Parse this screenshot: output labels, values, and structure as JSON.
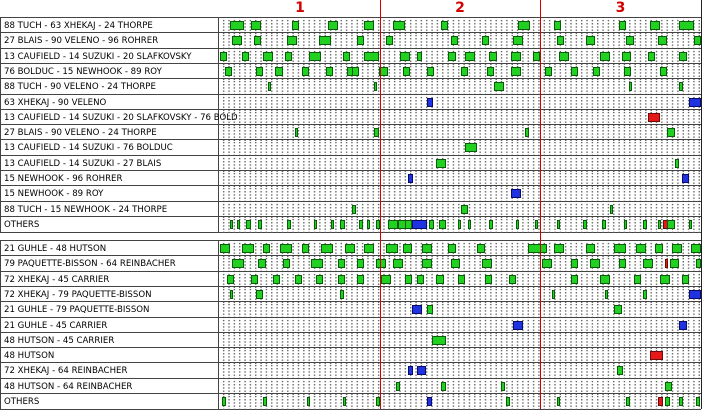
{
  "periods": [
    "1",
    "2",
    "3"
  ],
  "colors": {
    "green": "#22d022",
    "blue": "#1f34e0",
    "red": "#e61919",
    "period_line": "#d40000"
  },
  "top_section": {
    "rows": [
      {
        "label": "88 TUCH - 63 XHEKAJ - 24 THORPE",
        "events": [
          [
            0.02,
            0.05,
            "green"
          ],
          [
            0.065,
            0.085,
            "green"
          ],
          [
            0.15,
            0.165,
            "green"
          ],
          [
            0.225,
            0.245,
            "green"
          ],
          [
            0.3,
            0.32,
            "green"
          ],
          [
            0.36,
            0.385,
            "green"
          ],
          [
            0.46,
            0.475,
            "green"
          ],
          [
            0.62,
            0.645,
            "green"
          ],
          [
            0.695,
            0.71,
            "green"
          ],
          [
            0.83,
            0.845,
            "green"
          ],
          [
            0.895,
            0.915,
            "green"
          ],
          [
            0.955,
            0.985,
            "green"
          ]
        ]
      },
      {
        "label": "27 BLAIS - 90 VELENO - 96 ROHRER",
        "events": [
          [
            0.025,
            0.045,
            "green"
          ],
          [
            0.07,
            0.085,
            "green"
          ],
          [
            0.14,
            0.16,
            "green"
          ],
          [
            0.205,
            0.23,
            "green"
          ],
          [
            0.285,
            0.3,
            "green"
          ],
          [
            0.345,
            0.36,
            "green"
          ],
          [
            0.48,
            0.495,
            "green"
          ],
          [
            0.545,
            0.56,
            "green"
          ],
          [
            0.61,
            0.63,
            "green"
          ],
          [
            0.7,
            0.715,
            "green"
          ],
          [
            0.76,
            0.78,
            "green"
          ],
          [
            0.845,
            0.86,
            "green"
          ],
          [
            0.91,
            0.93,
            "green"
          ],
          [
            0.985,
            1.0,
            "green"
          ]
        ]
      },
      {
        "label": "13 CAUFIELD - 14 SUZUKI - 20 SLAFKOVSKY",
        "events": [
          [
            0.0,
            0.015,
            "green"
          ],
          [
            0.045,
            0.06,
            "green"
          ],
          [
            0.09,
            0.11,
            "green"
          ],
          [
            0.135,
            0.15,
            "green"
          ],
          [
            0.185,
            0.21,
            "green"
          ],
          [
            0.255,
            0.27,
            "green"
          ],
          [
            0.3,
            0.33,
            "green"
          ],
          [
            0.375,
            0.395,
            "green"
          ],
          [
            0.41,
            0.42,
            "green"
          ],
          [
            0.475,
            0.49,
            "green"
          ],
          [
            0.51,
            0.53,
            "green"
          ],
          [
            0.56,
            0.575,
            "green"
          ],
          [
            0.605,
            0.625,
            "green"
          ],
          [
            0.65,
            0.665,
            "green"
          ],
          [
            0.705,
            0.725,
            "green"
          ],
          [
            0.79,
            0.81,
            "green"
          ],
          [
            0.835,
            0.855,
            "green"
          ],
          [
            0.89,
            0.905,
            "green"
          ],
          [
            0.955,
            0.97,
            "green"
          ]
        ]
      },
      {
        "label": "76 BOLDUC - 15 NEWHOOK - 89 ROY",
        "events": [
          [
            0.01,
            0.025,
            "green"
          ],
          [
            0.075,
            0.09,
            "green"
          ],
          [
            0.115,
            0.13,
            "green"
          ],
          [
            0.17,
            0.185,
            "green"
          ],
          [
            0.22,
            0.235,
            "green"
          ],
          [
            0.265,
            0.28,
            "green"
          ],
          [
            0.275,
            0.29,
            "green"
          ],
          [
            0.33,
            0.35,
            "green"
          ],
          [
            0.38,
            0.395,
            "green"
          ],
          [
            0.43,
            0.445,
            "green"
          ],
          [
            0.5,
            0.515,
            "green"
          ],
          [
            0.555,
            0.57,
            "green"
          ],
          [
            0.605,
            0.625,
            "green"
          ],
          [
            0.675,
            0.69,
            "green"
          ],
          [
            0.73,
            0.745,
            "green"
          ],
          [
            0.775,
            0.79,
            "green"
          ],
          [
            0.84,
            0.855,
            "green"
          ],
          [
            0.915,
            0.93,
            "green"
          ]
        ]
      },
      {
        "label": "88 TUCH - 90 VELENO - 24 THORPE",
        "events": [
          [
            0.1,
            0.107,
            "green"
          ],
          [
            0.32,
            0.327,
            "green"
          ],
          [
            0.57,
            0.59,
            "green"
          ],
          [
            0.85,
            0.857,
            "green"
          ],
          [
            0.955,
            0.962,
            "green"
          ]
        ]
      },
      {
        "label": "63 XHEKAJ - 90 VELENO",
        "events": [
          [
            0.43,
            0.442,
            "blue"
          ],
          [
            0.975,
            1.0,
            "blue"
          ]
        ]
      },
      {
        "label": "13 CAUFIELD - 14 SUZUKI - 20 SLAFKOVSKY - 76 BOLD",
        "events": [
          [
            0.89,
            0.915,
            "red"
          ]
        ]
      },
      {
        "label": "27 BLAIS - 90 VELENO - 24 THORPE",
        "events": [
          [
            0.155,
            0.162,
            "green"
          ],
          [
            0.32,
            0.33,
            "green"
          ],
          [
            0.635,
            0.642,
            "green"
          ],
          [
            0.93,
            0.945,
            "green"
          ]
        ]
      },
      {
        "label": "13 CAUFIELD - 14 SUZUKI - 76 BOLDUC",
        "events": [
          [
            0.51,
            0.535,
            "green"
          ]
        ]
      },
      {
        "label": "13 CAUFIELD - 14 SUZUKI - 27 BLAIS",
        "events": [
          [
            0.45,
            0.47,
            "green"
          ],
          [
            0.945,
            0.955,
            "green"
          ]
        ]
      },
      {
        "label": "15 NEWHOOK - 96 ROHRER",
        "events": [
          [
            0.39,
            0.402,
            "blue"
          ],
          [
            0.96,
            0.975,
            "blue"
          ]
        ]
      },
      {
        "label": "15 NEWHOOK - 89 ROY",
        "events": [
          [
            0.605,
            0.625,
            "blue"
          ]
        ]
      },
      {
        "label": "88 TUCH - 15 NEWHOOK - 24 THORPE",
        "events": [
          [
            0.275,
            0.282,
            "green"
          ],
          [
            0.5,
            0.515,
            "green"
          ],
          [
            0.81,
            0.817,
            "green"
          ]
        ]
      },
      {
        "label": "OTHERS",
        "events": [
          [
            0.02,
            0.027,
            "green"
          ],
          [
            0.035,
            0.042,
            "green"
          ],
          [
            0.055,
            0.065,
            "green"
          ],
          [
            0.08,
            0.087,
            "green"
          ],
          [
            0.14,
            0.147,
            "green"
          ],
          [
            0.195,
            0.202,
            "green"
          ],
          [
            0.23,
            0.237,
            "green"
          ],
          [
            0.25,
            0.26,
            "green"
          ],
          [
            0.29,
            0.297,
            "green"
          ],
          [
            0.305,
            0.312,
            "green"
          ],
          [
            0.325,
            0.332,
            "green"
          ],
          [
            0.35,
            0.357,
            "green"
          ],
          [
            0.35,
            0.37,
            "green"
          ],
          [
            0.37,
            0.39,
            "green"
          ],
          [
            0.385,
            0.4,
            "green"
          ],
          [
            0.4,
            0.43,
            "blue"
          ],
          [
            0.435,
            0.445,
            "green"
          ],
          [
            0.455,
            0.47,
            "green"
          ],
          [
            0.495,
            0.502,
            "green"
          ],
          [
            0.515,
            0.522,
            "green"
          ],
          [
            0.56,
            0.567,
            "green"
          ],
          [
            0.615,
            0.622,
            "green"
          ],
          [
            0.655,
            0.662,
            "green"
          ],
          [
            0.7,
            0.707,
            "green"
          ],
          [
            0.755,
            0.762,
            "green"
          ],
          [
            0.795,
            0.802,
            "green"
          ],
          [
            0.84,
            0.847,
            "green"
          ],
          [
            0.88,
            0.887,
            "green"
          ],
          [
            0.91,
            0.917,
            "green"
          ],
          [
            0.92,
            0.935,
            "red"
          ],
          [
            0.93,
            0.945,
            "green"
          ],
          [
            0.975,
            0.982,
            "green"
          ]
        ]
      }
    ]
  },
  "bottom_section": {
    "rows": [
      {
        "label": "21 GUHLE - 48 HUTSON",
        "events": [
          [
            0.0,
            0.02,
            "green"
          ],
          [
            0.045,
            0.07,
            "green"
          ],
          [
            0.09,
            0.105,
            "green"
          ],
          [
            0.125,
            0.15,
            "green"
          ],
          [
            0.17,
            0.185,
            "green"
          ],
          [
            0.21,
            0.235,
            "green"
          ],
          [
            0.26,
            0.28,
            "green"
          ],
          [
            0.3,
            0.32,
            "green"
          ],
          [
            0.345,
            0.37,
            "green"
          ],
          [
            0.38,
            0.4,
            "green"
          ],
          [
            0.42,
            0.44,
            "green"
          ],
          [
            0.475,
            0.49,
            "green"
          ],
          [
            0.535,
            0.55,
            "green"
          ],
          [
            0.64,
            0.68,
            "green"
          ],
          [
            0.695,
            0.715,
            "green"
          ],
          [
            0.76,
            0.78,
            "green"
          ],
          [
            0.82,
            0.845,
            "green"
          ],
          [
            0.865,
            0.885,
            "green"
          ],
          [
            0.905,
            0.92,
            "green"
          ],
          [
            0.94,
            0.96,
            "green"
          ],
          [
            0.98,
            1.0,
            "green"
          ]
        ]
      },
      {
        "label": "79 PAQUETTE-BISSON - 64 REINBACHER",
        "events": [
          [
            0.025,
            0.05,
            "green"
          ],
          [
            0.08,
            0.095,
            "green"
          ],
          [
            0.13,
            0.145,
            "green"
          ],
          [
            0.19,
            0.215,
            "green"
          ],
          [
            0.245,
            0.26,
            "green"
          ],
          [
            0.285,
            0.3,
            "green"
          ],
          [
            0.325,
            0.345,
            "green"
          ],
          [
            0.36,
            0.38,
            "green"
          ],
          [
            0.42,
            0.44,
            "green"
          ],
          [
            0.48,
            0.5,
            "green"
          ],
          [
            0.545,
            0.565,
            "green"
          ],
          [
            0.67,
            0.69,
            "green"
          ],
          [
            0.73,
            0.745,
            "green"
          ],
          [
            0.77,
            0.79,
            "green"
          ],
          [
            0.83,
            0.845,
            "green"
          ],
          [
            0.88,
            0.9,
            "green"
          ],
          [
            0.935,
            0.955,
            "green"
          ],
          [
            0.99,
            1.0,
            "green"
          ],
          [
            0.925,
            0.93,
            "red"
          ]
        ]
      },
      {
        "label": "72 XHEKAJ - 45 CARRIER",
        "events": [
          [
            0.015,
            0.03,
            "green"
          ],
          [
            0.065,
            0.08,
            "green"
          ],
          [
            0.11,
            0.125,
            "green"
          ],
          [
            0.155,
            0.17,
            "green"
          ],
          [
            0.2,
            0.215,
            "green"
          ],
          [
            0.245,
            0.26,
            "green"
          ],
          [
            0.285,
            0.3,
            "green"
          ],
          [
            0.335,
            0.355,
            "green"
          ],
          [
            0.385,
            0.4,
            "green"
          ],
          [
            0.41,
            0.425,
            "green"
          ],
          [
            0.45,
            0.465,
            "green"
          ],
          [
            0.495,
            0.51,
            "green"
          ],
          [
            0.55,
            0.565,
            "green"
          ],
          [
            0.6,
            0.615,
            "green"
          ],
          [
            0.73,
            0.745,
            "green"
          ],
          [
            0.79,
            0.81,
            "green"
          ],
          [
            0.86,
            0.875,
            "green"
          ],
          [
            0.915,
            0.935,
            "green"
          ],
          [
            0.96,
            0.975,
            "green"
          ]
        ]
      },
      {
        "label": "72 XHEKAJ - 79 PAQUETTE-BISSON",
        "events": [
          [
            0.02,
            0.027,
            "green"
          ],
          [
            0.075,
            0.09,
            "green"
          ],
          [
            0.25,
            0.257,
            "green"
          ],
          [
            0.69,
            0.697,
            "green"
          ],
          [
            0.8,
            0.807,
            "green"
          ],
          [
            0.88,
            0.887,
            "green"
          ],
          [
            0.975,
            1.0,
            "blue"
          ]
        ]
      },
      {
        "label": "21 GUHLE - 79 PAQUETTE-BISSON",
        "events": [
          [
            0.4,
            0.42,
            "blue"
          ],
          [
            0.43,
            0.442,
            "green"
          ],
          [
            0.82,
            0.835,
            "green"
          ]
        ]
      },
      {
        "label": "21 GUHLE - 45 CARRIER",
        "events": [
          [
            0.61,
            0.63,
            "blue"
          ],
          [
            0.955,
            0.97,
            "blue"
          ]
        ]
      },
      {
        "label": "48 HUTSON - 45 CARRIER",
        "events": [
          [
            0.44,
            0.47,
            "green"
          ]
        ]
      },
      {
        "label": "48 HUTSON",
        "events": [
          [
            0.895,
            0.92,
            "red"
          ]
        ]
      },
      {
        "label": "72 XHEKAJ - 64 REINBACHER",
        "events": [
          [
            0.39,
            0.402,
            "blue"
          ],
          [
            0.41,
            0.428,
            "blue"
          ],
          [
            0.825,
            0.837,
            "green"
          ]
        ]
      },
      {
        "label": "48 HUTSON - 64 REINBACHER",
        "events": [
          [
            0.365,
            0.375,
            "green"
          ],
          [
            0.46,
            0.47,
            "green"
          ],
          [
            0.585,
            0.592,
            "green"
          ],
          [
            0.925,
            0.94,
            "green"
          ]
        ]
      },
      {
        "label": "OTHERS",
        "events": [
          [
            0.005,
            0.012,
            "green"
          ],
          [
            0.09,
            0.097,
            "green"
          ],
          [
            0.18,
            0.187,
            "green"
          ],
          [
            0.255,
            0.262,
            "green"
          ],
          [
            0.325,
            0.332,
            "green"
          ],
          [
            0.43,
            0.44,
            "blue"
          ],
          [
            0.595,
            0.602,
            "green"
          ],
          [
            0.7,
            0.707,
            "green"
          ],
          [
            0.845,
            0.852,
            "green"
          ],
          [
            0.91,
            0.922,
            "red"
          ],
          [
            0.925,
            0.935,
            "green"
          ],
          [
            0.955,
            0.962,
            "green"
          ],
          [
            0.99,
            0.997,
            "green"
          ]
        ]
      }
    ]
  }
}
